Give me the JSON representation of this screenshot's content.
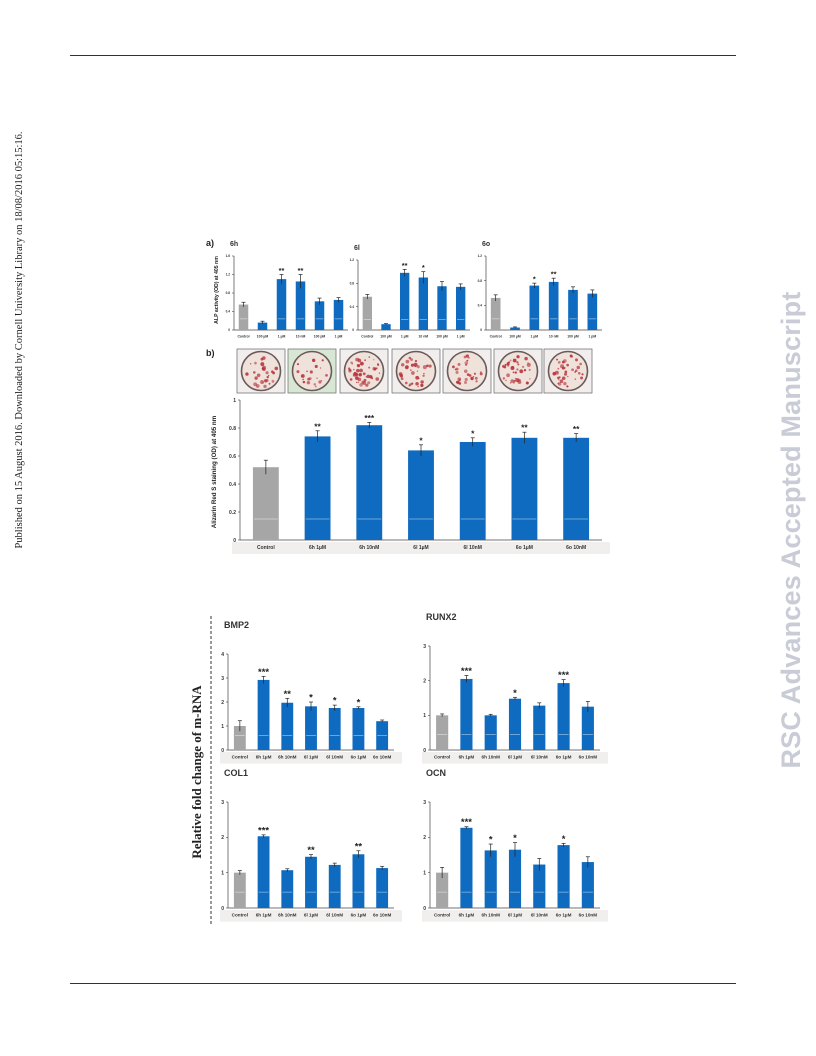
{
  "margin_note": "Published on 15 August 2016. Downloaded by Cornell University Library on 18/08/2016 05:15:16.",
  "watermark": "RSC Advances Accepted Manuscript",
  "figure_a": {
    "panel_label": "a)",
    "ylabel": "ALP activity (OD) at 405 nm"
  },
  "figure_b": {
    "panel_label": "b)",
    "ylabel": "Alizarin Red S staining (OD) at 405 nm"
  },
  "figure_c": {
    "ylabel": "Relative fold change of m-RNA"
  },
  "colors": {
    "control": "#a6a6a6",
    "treatment": "#0f6bbf",
    "well_outer": "#6a5a5a",
    "stain": "#b8323c"
  },
  "chart_data": [
    {
      "type": "bar",
      "title": "6h",
      "categories": [
        "Control",
        "100 µM",
        "1 µM",
        "10 nM",
        "100 pM",
        "1 pM"
      ],
      "values": [
        0.55,
        0.16,
        1.1,
        1.05,
        0.62,
        0.65
      ],
      "errors": [
        0.05,
        0.03,
        0.1,
        0.15,
        0.07,
        0.05
      ],
      "significance": [
        "",
        "",
        "**",
        "**",
        "",
        ""
      ],
      "ylim": [
        0,
        1.6
      ],
      "yticks": [
        "0",
        "0.4",
        "0.8",
        "1.2",
        "1.6"
      ]
    },
    {
      "type": "bar",
      "title": "6l",
      "categories": [
        "Control",
        "100 µM",
        "1 µM",
        "10 nM",
        "100 pM",
        "1 pM"
      ],
      "values": [
        0.57,
        0.1,
        0.98,
        0.9,
        0.75,
        0.74
      ],
      "errors": [
        0.04,
        0.01,
        0.06,
        0.1,
        0.08,
        0.05
      ],
      "significance": [
        "",
        "",
        "**",
        "*",
        "",
        ""
      ],
      "ylim": [
        0,
        1.2
      ],
      "yticks": [
        "0",
        "0.4",
        "0.8",
        "1.2"
      ]
    },
    {
      "type": "bar",
      "title": "6o",
      "categories": [
        "Control",
        "100 µM",
        "1 µM",
        "10 nM",
        "100 pM",
        "1 pM"
      ],
      "values": [
        0.52,
        0.04,
        0.72,
        0.78,
        0.65,
        0.59
      ],
      "errors": [
        0.05,
        0.01,
        0.04,
        0.06,
        0.05,
        0.06
      ],
      "significance": [
        "",
        "",
        "*",
        "**",
        "",
        ""
      ],
      "ylim": [
        0,
        1.2
      ],
      "yticks": [
        "0",
        "0.4",
        "0.8",
        "1.2"
      ]
    },
    {
      "type": "bar",
      "title": "",
      "categories": [
        "Control",
        "6h 1µM",
        "6h 10nM",
        "6l 1µM",
        "6l 10nM",
        "6o 1µM",
        "6o 10nM"
      ],
      "values": [
        0.52,
        0.74,
        0.82,
        0.64,
        0.7,
        0.73,
        0.73
      ],
      "errors": [
        0.05,
        0.04,
        0.02,
        0.04,
        0.03,
        0.04,
        0.03
      ],
      "significance": [
        "",
        "**",
        "***",
        "*",
        "*",
        "**",
        "**"
      ],
      "ylim": [
        0,
        1.0
      ],
      "yticks": [
        "0",
        "0.2",
        "0.4",
        "0.6",
        "0.8",
        "1"
      ]
    },
    {
      "type": "bar",
      "title": "BMP2",
      "categories": [
        "Control",
        "6h 1µM",
        "6h 10nM",
        "6l 1µM",
        "6l 10nM",
        "6o 1µM",
        "6o 10nM"
      ],
      "values": [
        1.0,
        2.92,
        1.97,
        1.82,
        1.75,
        1.75,
        1.2
      ],
      "errors": [
        0.22,
        0.15,
        0.18,
        0.18,
        0.12,
        0.05,
        0.05
      ],
      "significance": [
        "",
        "***",
        "**",
        "*",
        "*",
        "*",
        ""
      ],
      "ylim": [
        0,
        4
      ],
      "yticks": [
        "0",
        "1",
        "2",
        "3",
        "4"
      ]
    },
    {
      "type": "bar",
      "title": "RUNX2",
      "categories": [
        "Control",
        "6h 1µM",
        "6h 10nM",
        "6l 1µM",
        "6l 10nM",
        "6o 1µM",
        "6o 10nM"
      ],
      "values": [
        1.0,
        2.05,
        1.0,
        1.48,
        1.28,
        1.93,
        1.25
      ],
      "errors": [
        0.04,
        0.1,
        0.03,
        0.04,
        0.08,
        0.1,
        0.15
      ],
      "significance": [
        "",
        "***",
        "",
        "*",
        "",
        "***",
        ""
      ],
      "ylim": [
        0,
        3
      ],
      "yticks": [
        "0",
        "1",
        "2",
        "3"
      ]
    },
    {
      "type": "bar",
      "title": "COL1",
      "categories": [
        "Control",
        "6h 1µM",
        "6h 10nM",
        "6l 1µM",
        "6l 10nM",
        "6o 1µM",
        "6o 10nM"
      ],
      "values": [
        1.0,
        2.03,
        1.07,
        1.45,
        1.22,
        1.52,
        1.13
      ],
      "errors": [
        0.06,
        0.04,
        0.04,
        0.06,
        0.05,
        0.1,
        0.05
      ],
      "significance": [
        "",
        "***",
        "",
        "**",
        "",
        "**",
        ""
      ],
      "ylim": [
        0,
        3
      ],
      "yticks": [
        "0",
        "1",
        "2",
        "3"
      ]
    },
    {
      "type": "bar",
      "title": "OCN",
      "categories": [
        "Control",
        "6h 1µM",
        "6h 10nM",
        "6l 1µM",
        "6l 10nM",
        "6o 1µM",
        "6o 10nM"
      ],
      "values": [
        1.0,
        2.27,
        1.63,
        1.65,
        1.23,
        1.78,
        1.3
      ],
      "errors": [
        0.15,
        0.03,
        0.18,
        0.2,
        0.17,
        0.05,
        0.15
      ],
      "significance": [
        "",
        "***",
        "*",
        "*",
        "",
        "*",
        ""
      ],
      "ylim": [
        0,
        3
      ],
      "yticks": [
        "0",
        "1",
        "2",
        "3"
      ]
    }
  ]
}
